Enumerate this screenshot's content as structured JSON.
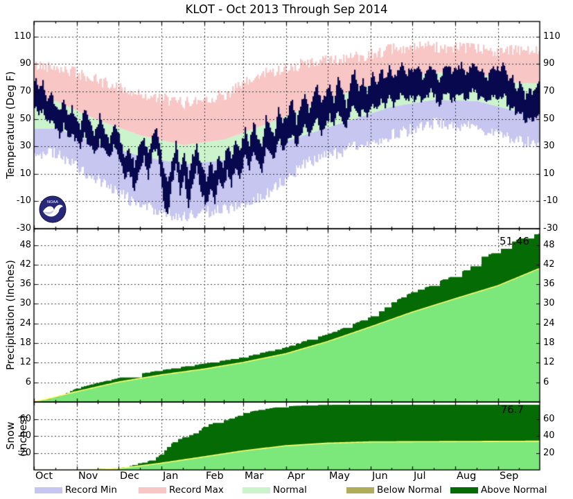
{
  "title": "KLOT - Oct 2013 Through Sep 2014",
  "legend": [
    {
      "label": "Record Min",
      "color": "#c6c6f0"
    },
    {
      "label": "Record Max",
      "color": "#f9c6c6"
    },
    {
      "label": "Normal",
      "color": "#ccf4cc"
    },
    {
      "label": "Below Normal",
      "color": "#b0ad58"
    },
    {
      "label": "Above Normal",
      "color": "#056b05"
    }
  ],
  "chart_data": [
    {
      "type": "area",
      "panel": "temperature",
      "ylabel": "Temperature (Deg F)",
      "ylim": [
        -30,
        121
      ],
      "yticks": [
        -30,
        -10,
        10,
        30,
        50,
        70,
        90,
        110
      ],
      "x_months": [
        "Oct",
        "Nov",
        "Dec",
        "Jan",
        "Feb",
        "Mar",
        "Apr",
        "May",
        "Jun",
        "Jul",
        "Aug",
        "Sep"
      ],
      "month_days": [
        31,
        30,
        31,
        31,
        28,
        31,
        30,
        31,
        30,
        31,
        31,
        30
      ],
      "grid": true,
      "colors": {
        "record_min": "#c6c6f0",
        "record_max": "#f9c6c6",
        "normal": "#ccf4cc",
        "actual": "#08084e"
      },
      "normal_high_monthly": [
        63,
        49,
        38,
        31,
        35,
        46,
        59,
        70,
        80,
        84,
        83,
        76
      ],
      "normal_low_monthly": [
        43,
        32,
        23,
        17,
        20,
        29,
        39,
        49,
        59,
        64,
        63,
        55
      ],
      "record_high_monthly": [
        89,
        78,
        68,
        62,
        68,
        84,
        91,
        95,
        101,
        103,
        101,
        100
      ],
      "record_low_monthly": [
        24,
        5,
        -14,
        -22,
        -16,
        -6,
        18,
        28,
        38,
        46,
        43,
        33
      ],
      "actual_anchors": [
        [
          0,
          80,
          60
        ],
        [
          3,
          72,
          54
        ],
        [
          6,
          77,
          57
        ],
        [
          9,
          64,
          46
        ],
        [
          12,
          71,
          50
        ],
        [
          15,
          59,
          42
        ],
        [
          18,
          55,
          38
        ],
        [
          21,
          66,
          46
        ],
        [
          24,
          52,
          36
        ],
        [
          27,
          58,
          40
        ],
        [
          30,
          50,
          34
        ],
        [
          33,
          44,
          28
        ],
        [
          36,
          56,
          38
        ],
        [
          40,
          47,
          30
        ],
        [
          43,
          38,
          24
        ],
        [
          47,
          52,
          34
        ],
        [
          50,
          42,
          26
        ],
        [
          54,
          34,
          20
        ],
        [
          57,
          46,
          30
        ],
        [
          60,
          40,
          23
        ],
        [
          62,
          34,
          18
        ],
        [
          65,
          22,
          6
        ],
        [
          68,
          30,
          14
        ],
        [
          72,
          16,
          -2
        ],
        [
          75,
          28,
          10
        ],
        [
          79,
          36,
          22
        ],
        [
          82,
          24,
          6
        ],
        [
          85,
          38,
          24
        ],
        [
          88,
          44,
          28
        ],
        [
          91,
          26,
          8
        ],
        [
          93,
          12,
          -10
        ],
        [
          96,
          4,
          -21
        ],
        [
          99,
          18,
          2
        ],
        [
          102,
          32,
          16
        ],
        [
          105,
          14,
          -6
        ],
        [
          108,
          24,
          8
        ],
        [
          111,
          8,
          -16
        ],
        [
          114,
          22,
          4
        ],
        [
          117,
          30,
          14
        ],
        [
          120,
          16,
          -4
        ],
        [
          124,
          6,
          -12
        ],
        [
          127,
          18,
          0
        ],
        [
          130,
          10,
          -10
        ],
        [
          133,
          24,
          6
        ],
        [
          136,
          16,
          -2
        ],
        [
          139,
          30,
          12
        ],
        [
          142,
          22,
          2
        ],
        [
          145,
          34,
          16
        ],
        [
          148,
          26,
          8
        ],
        [
          152,
          42,
          24
        ],
        [
          155,
          32,
          12
        ],
        [
          158,
          48,
          28
        ],
        [
          161,
          36,
          18
        ],
        [
          164,
          28,
          10
        ],
        [
          167,
          52,
          30
        ],
        [
          170,
          44,
          24
        ],
        [
          173,
          38,
          20
        ],
        [
          176,
          58,
          36
        ],
        [
          179,
          46,
          28
        ],
        [
          183,
          54,
          34
        ],
        [
          186,
          64,
          40
        ],
        [
          189,
          48,
          30
        ],
        [
          192,
          60,
          38
        ],
        [
          195,
          70,
          46
        ],
        [
          198,
          54,
          36
        ],
        [
          201,
          66,
          44
        ],
        [
          204,
          74,
          50
        ],
        [
          207,
          60,
          40
        ],
        [
          210,
          68,
          46
        ],
        [
          213,
          76,
          52
        ],
        [
          216,
          64,
          44
        ],
        [
          219,
          80,
          56
        ],
        [
          222,
          70,
          48
        ],
        [
          225,
          60,
          44
        ],
        [
          228,
          78,
          56
        ],
        [
          231,
          84,
          60
        ],
        [
          234,
          72,
          52
        ],
        [
          237,
          80,
          58
        ],
        [
          240,
          68,
          50
        ],
        [
          244,
          82,
          60
        ],
        [
          247,
          76,
          56
        ],
        [
          250,
          86,
          64
        ],
        [
          253,
          80,
          60
        ],
        [
          256,
          88,
          66
        ],
        [
          259,
          78,
          58
        ],
        [
          262,
          84,
          64
        ],
        [
          265,
          90,
          68
        ],
        [
          268,
          82,
          62
        ],
        [
          271,
          86,
          66
        ],
        [
          274,
          84,
          64
        ],
        [
          277,
          88,
          68
        ],
        [
          280,
          80,
          62
        ],
        [
          283,
          86,
          66
        ],
        [
          286,
          90,
          70
        ],
        [
          289,
          84,
          66
        ],
        [
          292,
          78,
          60
        ],
        [
          295,
          86,
          66
        ],
        [
          298,
          90,
          70
        ],
        [
          301,
          84,
          64
        ],
        [
          305,
          86,
          66
        ],
        [
          308,
          90,
          70
        ],
        [
          311,
          82,
          62
        ],
        [
          314,
          86,
          68
        ],
        [
          317,
          92,
          72
        ],
        [
          320,
          84,
          64
        ],
        [
          323,
          88,
          68
        ],
        [
          326,
          78,
          60
        ],
        [
          329,
          84,
          64
        ],
        [
          332,
          88,
          68
        ],
        [
          336,
          86,
          64
        ],
        [
          339,
          90,
          68
        ],
        [
          342,
          76,
          58
        ],
        [
          345,
          82,
          60
        ],
        [
          348,
          70,
          52
        ],
        [
          351,
          78,
          56
        ],
        [
          354,
          64,
          46
        ],
        [
          357,
          74,
          52
        ],
        [
          360,
          68,
          48
        ],
        [
          364,
          76,
          54
        ]
      ]
    },
    {
      "type": "area",
      "panel": "precipitation",
      "ylabel": "Precipitation (Inches)",
      "ylim": [
        0,
        53
      ],
      "yticks": [
        6,
        12,
        18,
        24,
        30,
        36,
        42,
        48
      ],
      "grid": true,
      "final_label": "51.46",
      "final_value": 51.46,
      "colors": {
        "normal_fill": "#7ce87c",
        "above": "#056b05",
        "below": "#b0ad58",
        "normal_line": "#ffff70"
      },
      "normal_anchors": [
        [
          0,
          0
        ],
        [
          31,
          3.2
        ],
        [
          61,
          6.1
        ],
        [
          92,
          8.3
        ],
        [
          123,
          10.1
        ],
        [
          151,
          12.1
        ],
        [
          182,
          14.8
        ],
        [
          212,
          18.5
        ],
        [
          243,
          23.0
        ],
        [
          273,
          27.5
        ],
        [
          304,
          31.6
        ],
        [
          335,
          35.6
        ],
        [
          364,
          40.7
        ]
      ],
      "actual_anchors": [
        [
          0,
          0.2
        ],
        [
          10,
          1.0
        ],
        [
          20,
          2.2
        ],
        [
          31,
          4.3
        ],
        [
          45,
          5.8
        ],
        [
          61,
          7.4
        ],
        [
          75,
          8.6
        ],
        [
          92,
          9.8
        ],
        [
          110,
          11.0
        ],
        [
          123,
          11.8
        ],
        [
          140,
          13.0
        ],
        [
          151,
          13.8
        ],
        [
          165,
          15.2
        ],
        [
          182,
          16.8
        ],
        [
          200,
          19.5
        ],
        [
          212,
          20.8
        ],
        [
          225,
          23.0
        ],
        [
          243,
          26.2
        ],
        [
          250,
          28.0
        ],
        [
          258,
          30.5
        ],
        [
          265,
          32.0
        ],
        [
          273,
          33.8
        ],
        [
          285,
          35.5
        ],
        [
          295,
          37.5
        ],
        [
          304,
          38.8
        ],
        [
          315,
          41.5
        ],
        [
          320,
          44.0
        ],
        [
          328,
          45.2
        ],
        [
          335,
          46.2
        ],
        [
          342,
          48.5
        ],
        [
          350,
          50.0
        ],
        [
          356,
          51.0
        ],
        [
          364,
          51.46
        ]
      ]
    },
    {
      "type": "area",
      "panel": "snow",
      "ylabel": "Snow (inches)",
      "ylim": [
        0,
        80
      ],
      "yticks": [
        20,
        40,
        60
      ],
      "grid": true,
      "final_label": "76.7",
      "final_value": 76.7,
      "colors": {
        "normal_fill": "#7ce87c",
        "above": "#056b05",
        "below": "#b0ad58",
        "normal_line": "#ffff70"
      },
      "normal_anchors": [
        [
          0,
          0
        ],
        [
          31,
          0
        ],
        [
          45,
          0.4
        ],
        [
          61,
          1.6
        ],
        [
          92,
          8
        ],
        [
          123,
          15.5
        ],
        [
          151,
          22.5
        ],
        [
          182,
          28.5
        ],
        [
          212,
          31.5
        ],
        [
          243,
          33
        ],
        [
          364,
          33.8
        ]
      ],
      "actual_anchors": [
        [
          0,
          0
        ],
        [
          44,
          0
        ],
        [
          46,
          1.2
        ],
        [
          55,
          1.6
        ],
        [
          61,
          2.2
        ],
        [
          68,
          4
        ],
        [
          74,
          7.5
        ],
        [
          80,
          9
        ],
        [
          86,
          13
        ],
        [
          92,
          19
        ],
        [
          96,
          27
        ],
        [
          101,
          34
        ],
        [
          106,
          38
        ],
        [
          112,
          41
        ],
        [
          118,
          45
        ],
        [
          123,
          52
        ],
        [
          128,
          55
        ],
        [
          134,
          57
        ],
        [
          140,
          60
        ],
        [
          146,
          63
        ],
        [
          151,
          67
        ],
        [
          157,
          69
        ],
        [
          163,
          71
        ],
        [
          169,
          72.5
        ],
        [
          176,
          74
        ],
        [
          182,
          75
        ],
        [
          195,
          76
        ],
        [
          205,
          76.5
        ],
        [
          212,
          76.7
        ],
        [
          364,
          76.7
        ]
      ]
    }
  ]
}
